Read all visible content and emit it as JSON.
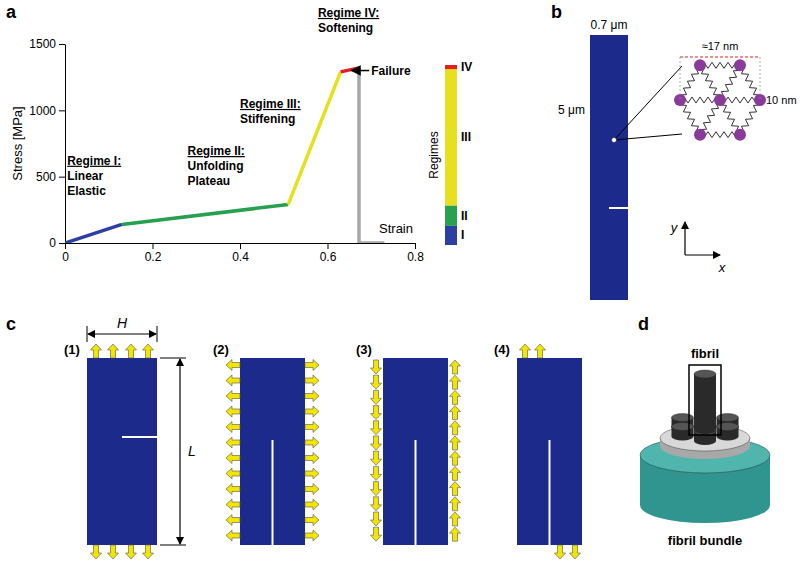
{
  "chart_data": {
    "type": "line",
    "xlabel": "Strain",
    "ylabel": "Stress [MPa]",
    "xlim": [
      0,
      0.8
    ],
    "xticks": [
      0,
      0.2,
      0.4,
      0.6,
      0.8
    ],
    "ylim": [
      0,
      1500
    ],
    "yticks": [
      0,
      500,
      1000,
      1500
    ],
    "legend_title": "Regimes",
    "series": [
      {
        "name": "I",
        "color": "#2e3fa3",
        "x": [
          0,
          0.13
        ],
        "values": [
          0,
          140
        ]
      },
      {
        "name": "II",
        "color": "#28a050",
        "x": [
          0.13,
          0.51
        ],
        "values": [
          140,
          290
        ]
      },
      {
        "name": "III",
        "color": "#e6e01e",
        "x": [
          0.51,
          0.63
        ],
        "values": [
          290,
          1290
        ]
      },
      {
        "name": "IV",
        "color": "#e61e1e",
        "x": [
          0.63,
          0.672
        ],
        "values": [
          1290,
          1320
        ]
      },
      {
        "color": "#a8a8a8",
        "x": [
          0.672,
          0.672,
          0.73
        ],
        "values": [
          1320,
          0,
          0
        ]
      }
    ],
    "annotations": [
      {
        "title": "Regime I:",
        "text": [
          "Linear",
          "Elastic"
        ],
        "x": 0.005,
        "y": 590
      },
      {
        "title": "Regime II:",
        "text": [
          "Unfolding",
          "Plateau"
        ],
        "x": 0.28,
        "y": 663
      },
      {
        "title": "Regime III:",
        "text": [
          "Stiffening"
        ],
        "x": 0.4,
        "y": 1018
      },
      {
        "title": "Regime IV:",
        "text": [
          "Softening"
        ],
        "x": 0.578,
        "y": 1704
      },
      {
        "text": [
          "Failure"
        ],
        "x": 0.7,
        "y": 1300,
        "arrow_to": [
          0.655,
          1300
        ]
      }
    ]
  },
  "diagram": {
    "panel_letters": [
      "a",
      "b",
      "c",
      "d"
    ],
    "b": {
      "width_label": "0.7 μm",
      "height_label": "5 μm",
      "cell_width_label": "≈17 nm",
      "cell_height_label": "10 nm",
      "axis_x": "x",
      "axis_y": "y"
    },
    "c": {
      "width_label": "H",
      "length_label": "L",
      "cases": [
        "(1)",
        "(2)",
        "(3)",
        "(4)"
      ]
    },
    "d": {
      "top_label": "fibril",
      "bottom_label": "fibril bundle"
    }
  }
}
